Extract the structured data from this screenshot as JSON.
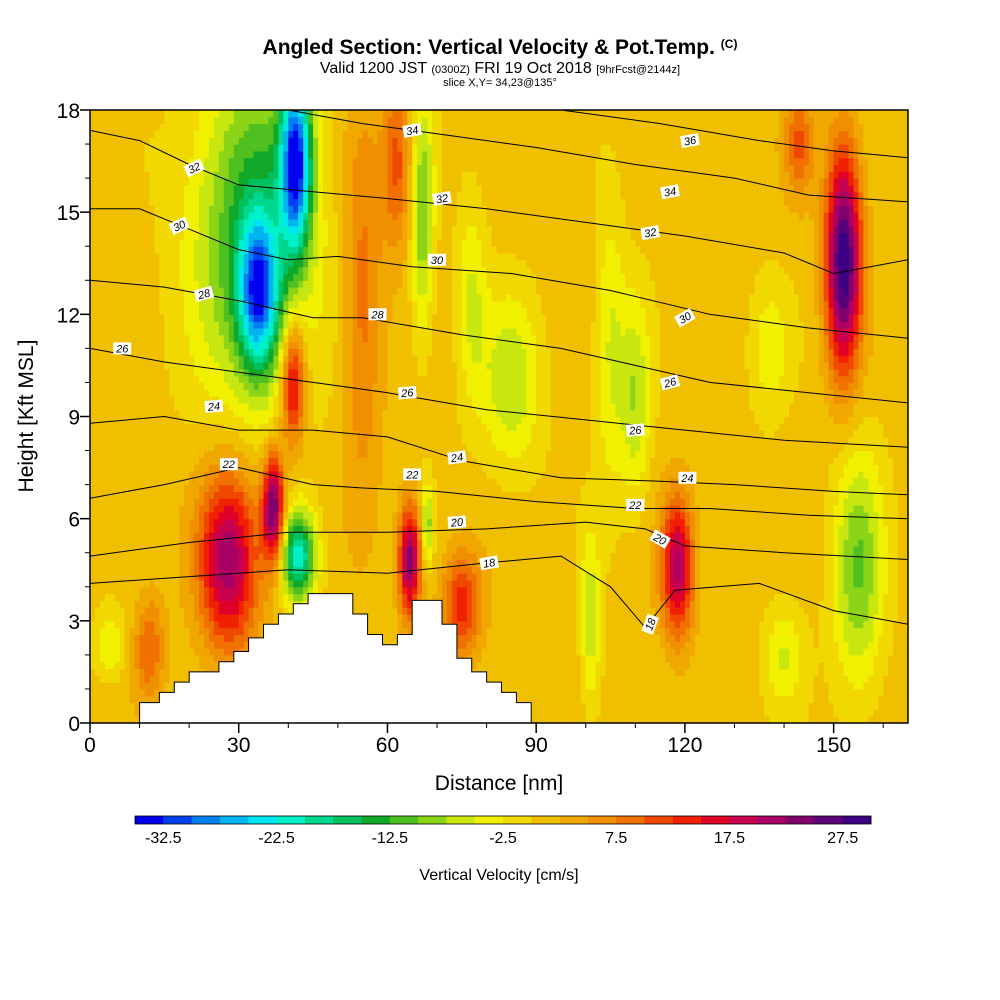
{
  "title": {
    "line1_main": "Angled Section: Vertical Velocity & Pot.Temp.",
    "line1_suffix": "(C)",
    "line2_a": "Valid 1200 JST",
    "line2_b": "(0300Z)",
    "line2_c": "FRI 19 Oct 2018",
    "line2_d": "[9hrFcst@2144z]",
    "line3": "slice X,Y= 34,23@135°"
  },
  "chart_data": {
    "type": "heatmap",
    "xlabel": "Distance [nm]",
    "ylabel": "Height [Kft MSL]",
    "xlim": [
      0,
      165
    ],
    "ylim": [
      0,
      18
    ],
    "xticks": [
      0,
      30,
      60,
      90,
      120,
      150
    ],
    "yticks": [
      0,
      3,
      6,
      9,
      12,
      15,
      18
    ],
    "colorbar": {
      "label": "Vertical Velocity [cm/s]",
      "tick_labels": [
        "-32.5",
        "-22.5",
        "-12.5",
        "-2.5",
        "7.5",
        "17.5",
        "27.5"
      ],
      "levels_min": -35,
      "levels_max": 30,
      "level_step": 2.5,
      "colors": [
        "#0000f0",
        "#0040f0",
        "#0080f0",
        "#00b4f0",
        "#00e6f0",
        "#00f0c8",
        "#00d890",
        "#00c060",
        "#10a828",
        "#50c020",
        "#8cd418",
        "#c8e610",
        "#f0f000",
        "#f0d800",
        "#f0c000",
        "#f0a800",
        "#f09000",
        "#f07000",
        "#f04800",
        "#f02000",
        "#e00028",
        "#c80050",
        "#a80064",
        "#80006e",
        "#5a0078",
        "#3c0082"
      ]
    },
    "terrain_profile": {
      "x_nm": [
        0,
        10,
        10,
        14,
        14,
        17,
        17,
        20,
        20,
        26,
        26,
        29,
        29,
        32,
        32,
        35,
        35,
        38,
        38,
        41,
        41,
        44,
        44,
        47,
        47,
        53,
        53,
        56,
        56,
        59,
        59,
        62,
        62,
        65,
        65,
        71,
        71,
        74,
        74,
        77,
        77,
        80,
        80,
        83,
        83,
        86,
        86,
        89,
        89,
        165
      ],
      "height_kft": [
        0,
        0,
        0.6,
        0.6,
        0.9,
        0.9,
        1.2,
        1.2,
        1.5,
        1.5,
        1.8,
        1.8,
        2.1,
        2.1,
        2.5,
        2.5,
        2.9,
        2.9,
        3.2,
        3.2,
        3.5,
        3.5,
        3.8,
        3.8,
        3.8,
        3.8,
        3.2,
        3.2,
        2.6,
        2.6,
        2.3,
        2.3,
        2.6,
        2.6,
        3.6,
        3.6,
        2.9,
        2.9,
        1.9,
        1.9,
        1.5,
        1.5,
        1.2,
        1.2,
        0.9,
        0.9,
        0.6,
        0.6,
        0,
        0
      ]
    },
    "vertical_velocity_features": [
      {
        "kind": "updraft",
        "x_center": 28,
        "y_center": 4.8,
        "x_halfwidth": 6,
        "y_halfwidth": 2.6,
        "peak_cms": 21
      },
      {
        "kind": "updraft",
        "x_center": 37,
        "y_center": 6.3,
        "x_halfwidth": 2.2,
        "y_halfwidth": 1.6,
        "peak_cms": 25
      },
      {
        "kind": "updraft",
        "x_center": 41,
        "y_center": 10.0,
        "x_halfwidth": 2.4,
        "y_halfwidth": 1.8,
        "peak_cms": 18
      },
      {
        "kind": "updraft",
        "x_center": 64.5,
        "y_center": 4.8,
        "x_halfwidth": 2.2,
        "y_halfwidth": 1.6,
        "peak_cms": 23
      },
      {
        "kind": "updraft",
        "x_center": 118.5,
        "y_center": 4.6,
        "x_halfwidth": 3.2,
        "y_halfwidth": 2.0,
        "peak_cms": 20
      },
      {
        "kind": "updraft",
        "x_center": 152,
        "y_center": 13.6,
        "x_halfwidth": 3.5,
        "y_halfwidth": 3.2,
        "peak_cms": 29
      },
      {
        "kind": "downdraft",
        "x_center": 33,
        "y_center": 14.5,
        "x_halfwidth": 12,
        "y_halfwidth": 5.0,
        "peak_cms": -15
      },
      {
        "kind": "downdraft",
        "x_center": 34,
        "y_center": 12.6,
        "x_halfwidth": 4,
        "y_halfwidth": 2.2,
        "peak_cms": -24
      },
      {
        "kind": "downdraft",
        "x_center": 41.5,
        "y_center": 16.5,
        "x_halfwidth": 3,
        "y_halfwidth": 2.5,
        "peak_cms": -30
      },
      {
        "kind": "downdraft",
        "x_center": 42,
        "y_center": 4.9,
        "x_halfwidth": 3.5,
        "y_halfwidth": 1.3,
        "peak_cms": -22
      },
      {
        "kind": "downdraft",
        "x_center": 67,
        "y_center": 15.0,
        "x_halfwidth": 2.3,
        "y_halfwidth": 3.5,
        "peak_cms": -11
      },
      {
        "kind": "downdraft",
        "x_center": 68,
        "y_center": 5.8,
        "x_halfwidth": 1.2,
        "y_halfwidth": 1.2,
        "peak_cms": -10
      },
      {
        "kind": "downdraft",
        "x_center": 77,
        "y_center": 12.5,
        "x_halfwidth": 3,
        "y_halfwidth": 3.0,
        "peak_cms": -6
      },
      {
        "kind": "downdraft",
        "x_center": 85,
        "y_center": 10.0,
        "x_halfwidth": 6,
        "y_halfwidth": 2.5,
        "peak_cms": -8
      },
      {
        "kind": "downdraft",
        "x_center": 105,
        "y_center": 11.0,
        "x_halfwidth": 3,
        "y_halfwidth": 4.5,
        "peak_cms": -6
      },
      {
        "kind": "downdraft",
        "x_center": 110,
        "y_center": 9.5,
        "x_halfwidth": 3,
        "y_halfwidth": 3.0,
        "peak_cms": -8
      },
      {
        "kind": "downdraft",
        "x_center": 101,
        "y_center": 3.0,
        "x_halfwidth": 2,
        "y_halfwidth": 2.5,
        "peak_cms": -8
      },
      {
        "kind": "downdraft",
        "x_center": 137,
        "y_center": 11.0,
        "x_halfwidth": 4,
        "y_halfwidth": 2.0,
        "peak_cms": -5
      },
      {
        "kind": "downdraft",
        "x_center": 155,
        "y_center": 4.5,
        "x_halfwidth": 5,
        "y_halfwidth": 3.5,
        "peak_cms": -11
      },
      {
        "kind": "downdraft",
        "x_center": 140,
        "y_center": 2.0,
        "x_halfwidth": 4,
        "y_halfwidth": 1.5,
        "peak_cms": -6
      },
      {
        "kind": "downdraft",
        "x_center": 4,
        "y_center": 2.3,
        "x_halfwidth": 3,
        "y_halfwidth": 1.0,
        "peak_cms": -6
      },
      {
        "kind": "updraft",
        "x_center": 12,
        "y_center": 2.2,
        "x_halfwidth": 3,
        "y_halfwidth": 1.5,
        "peak_cms": 9
      },
      {
        "kind": "updraft",
        "x_center": 55,
        "y_center": 12.5,
        "x_halfwidth": 4,
        "y_halfwidth": 5.5,
        "peak_cms": 8
      },
      {
        "kind": "updraft",
        "x_center": 62,
        "y_center": 16.5,
        "x_halfwidth": 3,
        "y_halfwidth": 2.5,
        "peak_cms": 10
      },
      {
        "kind": "updraft",
        "x_center": 75,
        "y_center": 3.5,
        "x_halfwidth": 4,
        "y_halfwidth": 1.5,
        "peak_cms": 13
      },
      {
        "kind": "updraft",
        "x_center": 143,
        "y_center": 17.0,
        "x_halfwidth": 3,
        "y_halfwidth": 1.5,
        "peak_cms": 9
      }
    ],
    "potential_temperature_contours": [
      {
        "label": "18",
        "points": [
          [
            0,
            4.1
          ],
          [
            20,
            4.3
          ],
          [
            40,
            4.5
          ],
          [
            60,
            4.4
          ],
          [
            80,
            4.7
          ],
          [
            95,
            4.9
          ],
          [
            105,
            4.0
          ],
          [
            112,
            2.8
          ],
          [
            118,
            3.9
          ],
          [
            135,
            4.1
          ],
          [
            150,
            3.3
          ],
          [
            165,
            2.9
          ]
        ]
      },
      {
        "label": "20",
        "points": [
          [
            0,
            4.9
          ],
          [
            20,
            5.3
          ],
          [
            40,
            5.6
          ],
          [
            60,
            5.6
          ],
          [
            80,
            5.7
          ],
          [
            100,
            5.9
          ],
          [
            112,
            5.7
          ],
          [
            120,
            5.2
          ],
          [
            140,
            5.0
          ],
          [
            165,
            4.8
          ]
        ]
      },
      {
        "label": "22",
        "points": [
          [
            0,
            6.6
          ],
          [
            15,
            7.0
          ],
          [
            30,
            7.5
          ],
          [
            45,
            7.0
          ],
          [
            55,
            6.9
          ],
          [
            70,
            6.8
          ],
          [
            90,
            6.5
          ],
          [
            110,
            6.3
          ],
          [
            125,
            6.3
          ],
          [
            145,
            6.1
          ],
          [
            165,
            6.0
          ]
        ]
      },
      {
        "label": "24",
        "points": [
          [
            0,
            8.8
          ],
          [
            15,
            9.0
          ],
          [
            30,
            8.6
          ],
          [
            45,
            8.6
          ],
          [
            60,
            8.4
          ],
          [
            75,
            7.7
          ],
          [
            95,
            7.2
          ],
          [
            115,
            7.1
          ],
          [
            130,
            7.0
          ],
          [
            150,
            6.8
          ],
          [
            165,
            6.7
          ]
        ]
      },
      {
        "label": "26",
        "points": [
          [
            0,
            11.0
          ],
          [
            15,
            10.6
          ],
          [
            30,
            10.3
          ],
          [
            45,
            10.0
          ],
          [
            60,
            9.7
          ],
          [
            80,
            9.2
          ],
          [
            100,
            8.9
          ],
          [
            120,
            8.6
          ],
          [
            140,
            8.3
          ],
          [
            165,
            8.1
          ]
        ]
      },
      {
        "label": "28",
        "points": [
          [
            0,
            13.0
          ],
          [
            15,
            12.8
          ],
          [
            30,
            12.4
          ],
          [
            45,
            11.9
          ],
          [
            55,
            11.9
          ],
          [
            75,
            11.4
          ],
          [
            95,
            11.0
          ],
          [
            110,
            10.5
          ],
          [
            125,
            10.0
          ],
          [
            145,
            9.7
          ],
          [
            165,
            9.4
          ]
        ]
      },
      {
        "label": "30",
        "points": [
          [
            0,
            15.1
          ],
          [
            10,
            15.1
          ],
          [
            20,
            14.5
          ],
          [
            30,
            13.9
          ],
          [
            40,
            13.6
          ],
          [
            50,
            13.7
          ],
          [
            65,
            13.4
          ],
          [
            85,
            13.2
          ],
          [
            105,
            12.7
          ],
          [
            125,
            12.0
          ],
          [
            145,
            11.6
          ],
          [
            165,
            11.3
          ]
        ]
      },
      {
        "label": "32",
        "points": [
          [
            0,
            17.4
          ],
          [
            10,
            17.1
          ],
          [
            20,
            16.4
          ],
          [
            30,
            15.8
          ],
          [
            45,
            15.6
          ],
          [
            60,
            15.4
          ],
          [
            80,
            15.1
          ],
          [
            100,
            14.7
          ],
          [
            120,
            14.3
          ],
          [
            140,
            13.8
          ],
          [
            150,
            13.2
          ],
          [
            165,
            13.6
          ]
        ]
      },
      {
        "label": "34",
        "points": [
          [
            40,
            18.0
          ],
          [
            55,
            17.6
          ],
          [
            70,
            17.3
          ],
          [
            90,
            16.9
          ],
          [
            110,
            16.4
          ],
          [
            130,
            16.0
          ],
          [
            145,
            15.5
          ],
          [
            165,
            15.3
          ]
        ]
      },
      {
        "label": "36",
        "points": [
          [
            95,
            18.0
          ],
          [
            115,
            17.6
          ],
          [
            135,
            17.1
          ],
          [
            150,
            16.8
          ],
          [
            165,
            16.6
          ]
        ]
      }
    ],
    "contour_labels": [
      {
        "text": "18",
        "x": 80.5,
        "y": 4.7,
        "rot": -10
      },
      {
        "text": "18",
        "x": 113,
        "y": 2.9,
        "rot": -70
      },
      {
        "text": "20",
        "x": 74,
        "y": 5.9,
        "rot": -5
      },
      {
        "text": "20",
        "x": 115,
        "y": 5.4,
        "rot": 30
      },
      {
        "text": "22",
        "x": 28,
        "y": 7.6,
        "rot": 0
      },
      {
        "text": "22",
        "x": 65,
        "y": 7.3,
        "rot": 0
      },
      {
        "text": "22",
        "x": 110,
        "y": 6.4,
        "rot": 0
      },
      {
        "text": "24",
        "x": 25,
        "y": 9.3,
        "rot": -5
      },
      {
        "text": "24",
        "x": 74,
        "y": 7.8,
        "rot": -8
      },
      {
        "text": "24",
        "x": 120.5,
        "y": 7.2,
        "rot": 0
      },
      {
        "text": "26",
        "x": 6.5,
        "y": 11.0,
        "rot": 0
      },
      {
        "text": "26",
        "x": 64,
        "y": 9.7,
        "rot": -5
      },
      {
        "text": "26",
        "x": 110,
        "y": 8.6,
        "rot": -5
      },
      {
        "text": "26",
        "x": 117,
        "y": 10.0,
        "rot": -15
      },
      {
        "text": "28",
        "x": 23,
        "y": 12.6,
        "rot": -15
      },
      {
        "text": "28",
        "x": 58,
        "y": 12.0,
        "rot": 0
      },
      {
        "text": "30",
        "x": 18,
        "y": 14.6,
        "rot": -25
      },
      {
        "text": "30",
        "x": 70,
        "y": 13.6,
        "rot": 0
      },
      {
        "text": "30",
        "x": 120,
        "y": 11.9,
        "rot": -30
      },
      {
        "text": "32",
        "x": 21,
        "y": 16.3,
        "rot": -25
      },
      {
        "text": "32",
        "x": 71,
        "y": 15.4,
        "rot": -10
      },
      {
        "text": "32",
        "x": 113,
        "y": 14.4,
        "rot": -10
      },
      {
        "text": "34",
        "x": 65,
        "y": 17.4,
        "rot": -10
      },
      {
        "text": "34",
        "x": 117,
        "y": 15.6,
        "rot": -10
      },
      {
        "text": "36",
        "x": 121,
        "y": 17.1,
        "rot": -10
      }
    ]
  }
}
